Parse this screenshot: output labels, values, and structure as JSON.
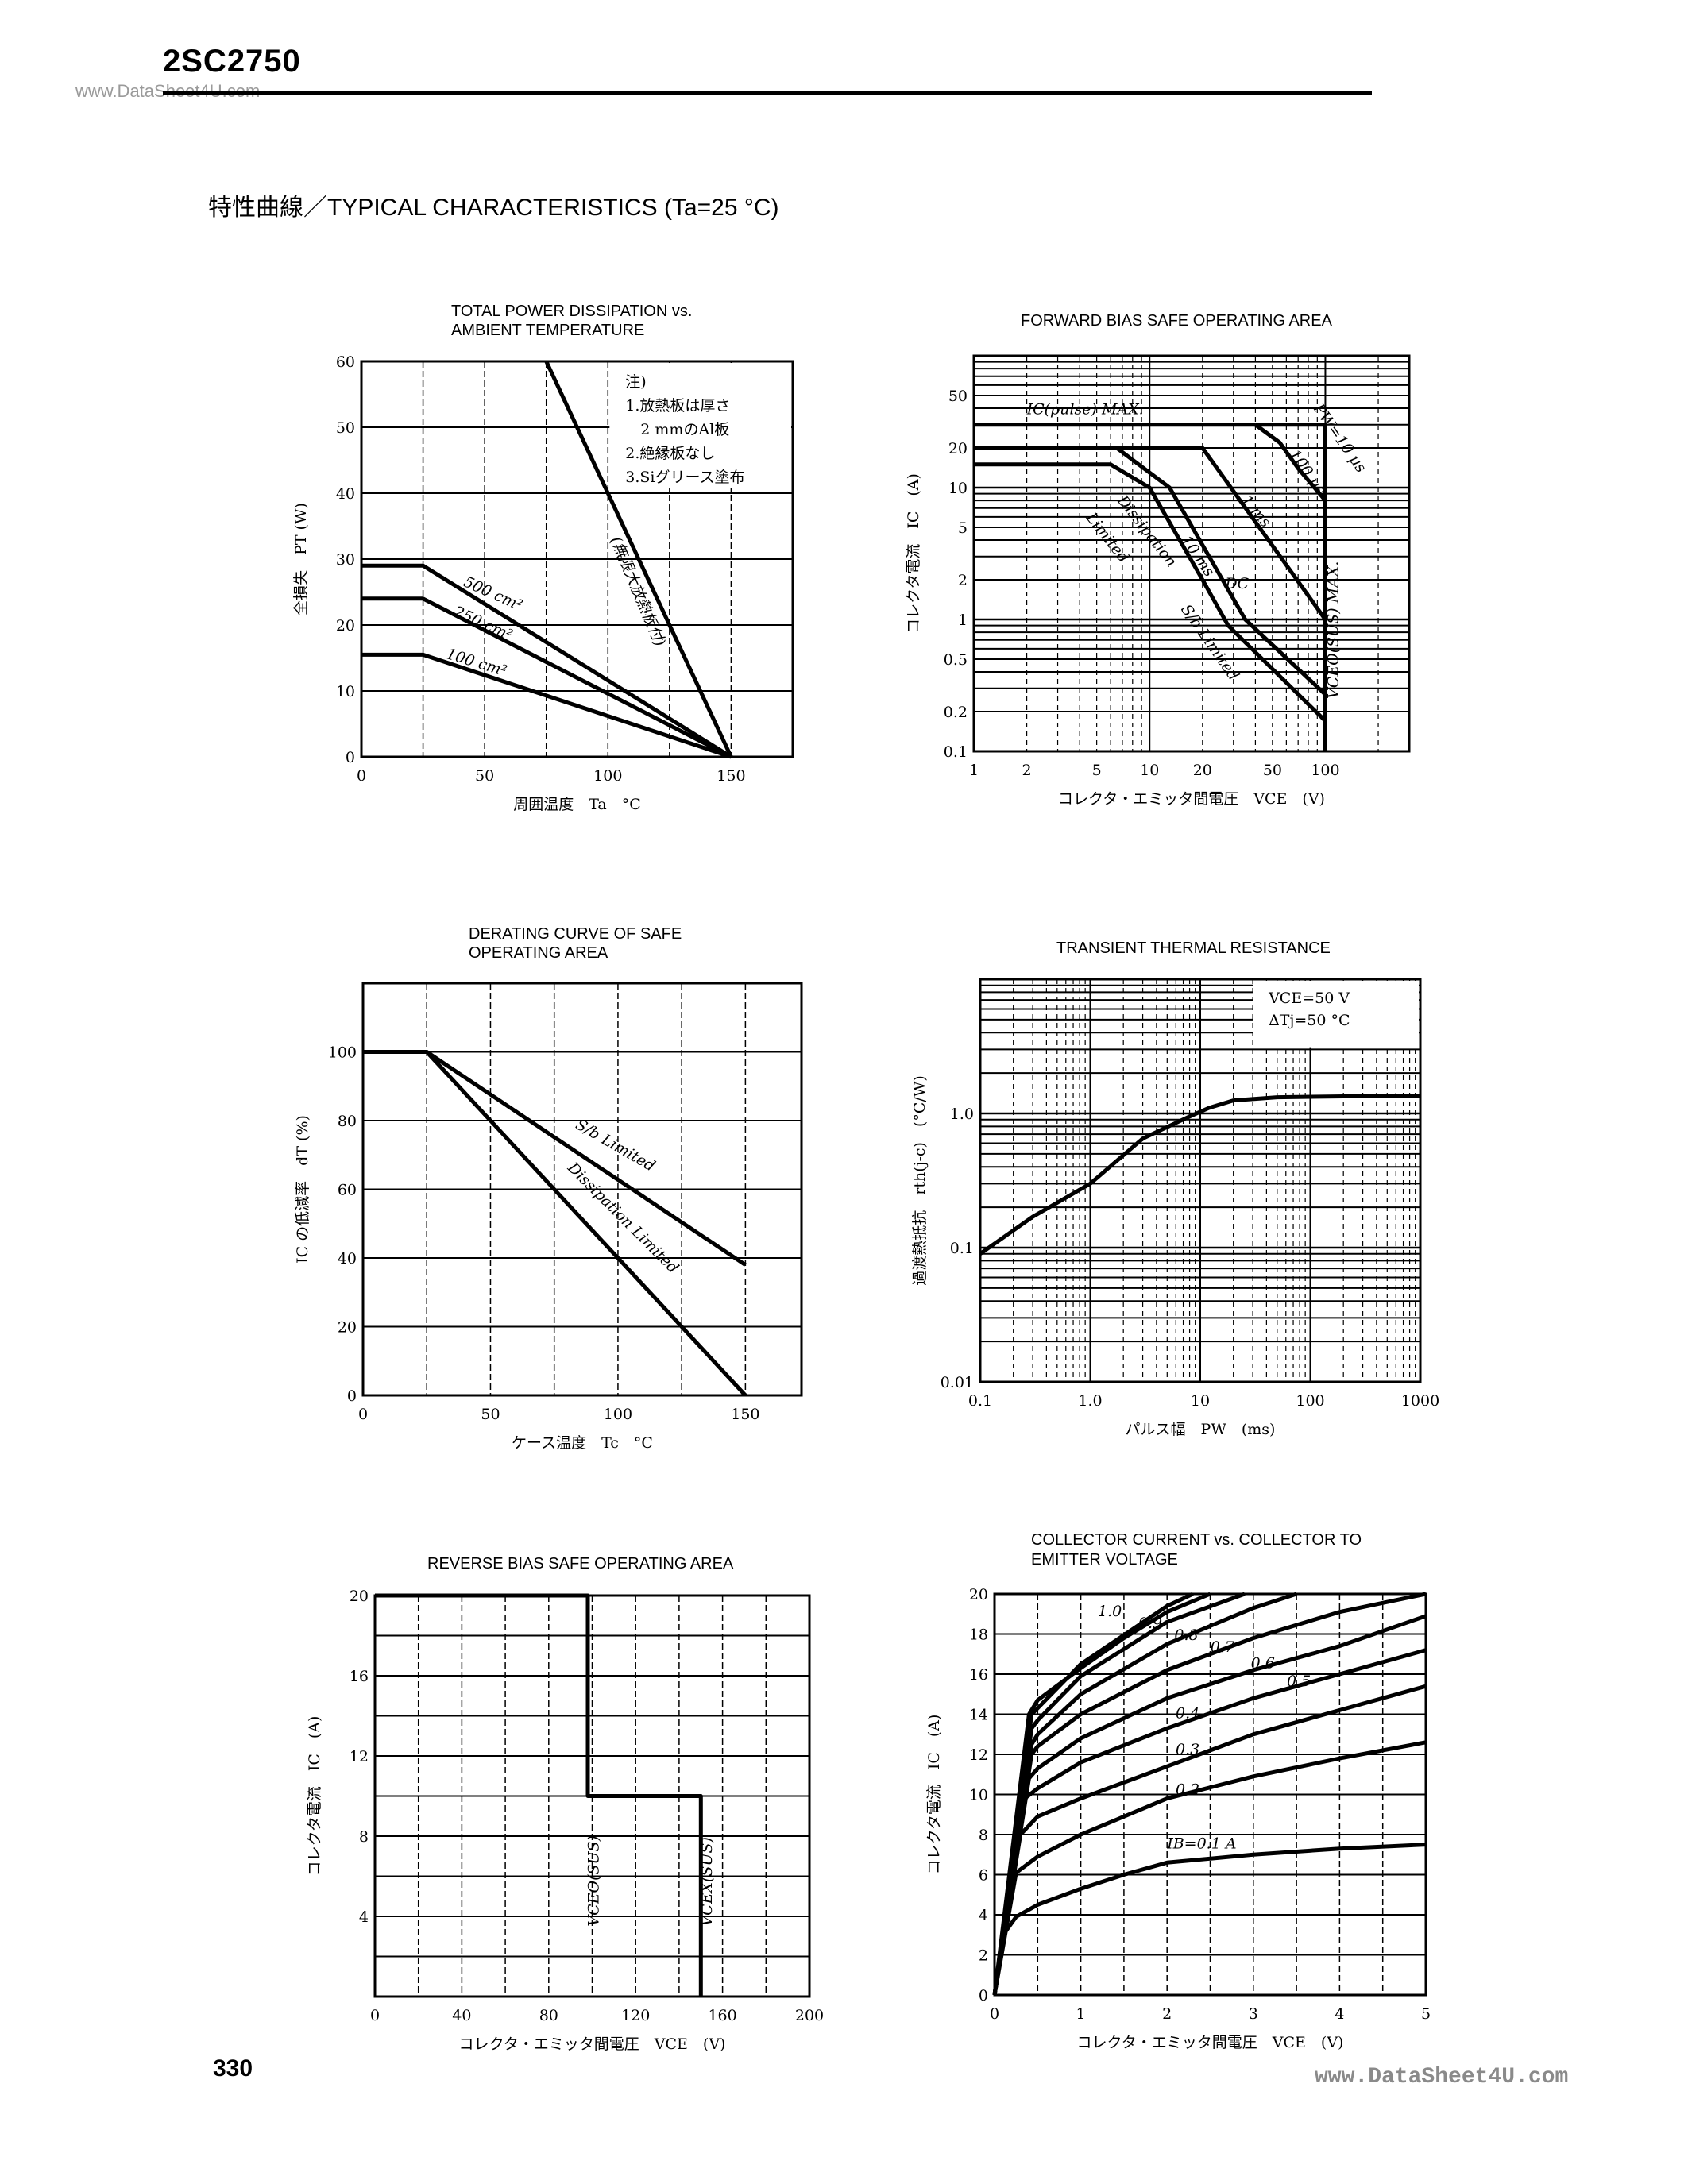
{
  "header": {
    "part_number": "2SC2750",
    "watermark": "www.DataSheet4U.com",
    "section_title": "特性曲線／TYPICAL CHARACTERISTICS (Ta=25 °C)"
  },
  "footer": {
    "page_number": "330",
    "watermark": "www.DataSheet4U.com"
  },
  "chart_data": [
    {
      "type": "line",
      "title_lines": [
        "TOTAL POWER DISSIPATION vs.",
        "AMBIENT TEMPERATURE"
      ],
      "xlabel": "周囲温度　Ta　°C",
      "ylabel": "全損失　PT (W)",
      "xscale": "linear",
      "yscale": "linear",
      "xlim": [
        0,
        175
      ],
      "ylim": [
        0,
        60
      ],
      "xgrid": 25,
      "ygrid": 10,
      "xticks": [
        0,
        50,
        100,
        150
      ],
      "yticks": [
        0,
        10,
        20,
        30,
        40,
        50,
        60
      ],
      "grid": true,
      "notes": [
        "注)",
        "1.放熱板は厚さ",
        "　2 mmのAl板",
        "2.絶縁板なし",
        "3.Siグリース塗布"
      ],
      "series": [
        {
          "name": "無限大放熱板付",
          "x": [
            75,
            150
          ],
          "y": [
            60,
            0
          ]
        },
        {
          "name": "500 cm²",
          "x": [
            0,
            25,
            150
          ],
          "y": [
            29,
            29,
            0
          ]
        },
        {
          "name": "250 cm²",
          "x": [
            0,
            25,
            150
          ],
          "y": [
            24,
            24,
            0
          ]
        },
        {
          "name": "100 cm²",
          "x": [
            0,
            25,
            150
          ],
          "y": [
            15.5,
            15.5,
            0
          ]
        }
      ],
      "annotations": [
        {
          "text": "500 cm²",
          "x": 41,
          "y": 26
        },
        {
          "text": "250 cm²",
          "x": 37,
          "y": 21.5
        },
        {
          "text": "100 cm²",
          "x": 34,
          "y": 15
        },
        {
          "text": "(無限大放熱板付)",
          "x": 101,
          "y": 33
        }
      ]
    },
    {
      "type": "line",
      "title_lines": [
        "FORWARD BIAS SAFE OPERATING AREA"
      ],
      "xlabel": "コレクタ・エミッタ間電圧　VCE　(V)",
      "ylabel": "コレクタ電流　IC　(A)",
      "xscale": "log",
      "yscale": "log",
      "xlim": [
        1,
        300
      ],
      "ylim": [
        0.1,
        100
      ],
      "xticks": [
        1,
        2,
        5,
        10,
        20,
        50,
        100
      ],
      "yticks": [
        0.1,
        0.2,
        0.5,
        1,
        2,
        5,
        10,
        20,
        50
      ],
      "grid": true,
      "series": [
        {
          "name": "IC(pulse) MAX.",
          "x": [
            1,
            40
          ],
          "y": [
            30,
            30
          ]
        },
        {
          "name": "PW=10 µs",
          "x": [
            40,
            100,
            100
          ],
          "y": [
            30,
            30,
            8
          ]
        },
        {
          "name": "100 µs",
          "x": [
            40,
            55,
            70,
            100
          ],
          "y": [
            30,
            22,
            14,
            8
          ]
        },
        {
          "name": "1 ms",
          "x": [
            1,
            20,
            100
          ],
          "y": [
            20,
            20,
            1
          ]
        },
        {
          "name": "10 ms",
          "x": [
            1,
            6.5,
            13,
            35,
            100
          ],
          "y": [
            20,
            20,
            10,
            1,
            0.27
          ]
        },
        {
          "name": "DC",
          "x": [
            1,
            6,
            10,
            20,
            28,
            100
          ],
          "y": [
            15,
            15,
            10,
            2,
            0.9,
            0.17
          ]
        },
        {
          "name": "VCEO(SUS) MAX.",
          "x": [
            100,
            100
          ],
          "y": [
            0.1,
            30
          ]
        }
      ],
      "annotations": [
        {
          "text": "IC(pulse)  MAX.",
          "x": 2,
          "y": 36
        },
        {
          "text": "PW=10 µs",
          "x": 85,
          "y": 40
        },
        {
          "text": "100 µs",
          "x": 62,
          "y": 18
        },
        {
          "text": "1 ms",
          "x": 33,
          "y": 8
        },
        {
          "text": "10 ms",
          "x": 15,
          "y": 4
        },
        {
          "text": "DC",
          "x": 13,
          "y": 3
        },
        {
          "text": "Dissipation",
          "x": 6.5,
          "y": 8
        },
        {
          "text": "Limited",
          "x": 5,
          "y": 7
        },
        {
          "text": "S/b Limited",
          "x": 15,
          "y": 1.2
        },
        {
          "text": "VCEO(SUS) MAX.",
          "x": 118,
          "y": 0.25
        }
      ]
    },
    {
      "type": "line",
      "title_lines": [
        "DERATING CURVE OF SAFE",
        "OPERATING AREA"
      ],
      "xlabel": "ケース温度　Tc　°C",
      "ylabel": "IC の低減率　dT (%)",
      "xscale": "linear",
      "yscale": "linear",
      "xlim": [
        0,
        172
      ],
      "ylim": [
        0,
        120
      ],
      "xgrid": 25,
      "ygrid": 20,
      "xticks": [
        0,
        50,
        100,
        150
      ],
      "yticks": [
        0,
        20,
        40,
        60,
        80,
        100
      ],
      "grid": true,
      "series": [
        {
          "name": "S/b Limited",
          "x": [
            0,
            25,
            150
          ],
          "y": [
            100,
            100,
            38
          ]
        },
        {
          "name": "Dissipation Limited",
          "x": [
            0,
            25,
            150
          ],
          "y": [
            100,
            100,
            0
          ]
        }
      ],
      "annotations": [
        {
          "text": "S/b Limited",
          "x": 83,
          "y": 78
        },
        {
          "text": "Dissipation Limited",
          "x": 80,
          "y": 66
        }
      ]
    },
    {
      "type": "line",
      "title_lines": [
        "TRANSIENT THERMAL RESISTANCE"
      ],
      "xlabel": "パルス幅　PW　(ms)",
      "ylabel": "過渡熱抵抗　rth(j-c)　(°C/W)",
      "xscale": "log",
      "yscale": "log",
      "xlim": [
        0.1,
        1000
      ],
      "ylim": [
        0.01,
        10
      ],
      "xticks": [
        0.1,
        1.0,
        10,
        100,
        1000
      ],
      "xtick_labels": [
        "0.1",
        "1.0",
        "10",
        "100",
        "1000"
      ],
      "yticks": [
        0.01,
        0.1,
        1.0
      ],
      "ytick_labels": [
        "0.01",
        "0.1",
        "1.0"
      ],
      "grid": true,
      "conditions": [
        "VCE=50 V",
        "ΔTj=50 °C"
      ],
      "series": [
        {
          "x": [
            0.1,
            0.3,
            1,
            3,
            8,
            12,
            20,
            50,
            200,
            1000
          ],
          "y": [
            0.09,
            0.17,
            0.3,
            0.65,
            0.95,
            1.1,
            1.25,
            1.32,
            1.34,
            1.35
          ]
        }
      ],
      "annotations": []
    },
    {
      "type": "line",
      "title_lines": [
        "REVERSE BIAS SAFE OPERATING AREA"
      ],
      "xlabel": "コレクタ・エミッタ間電圧　VCE　(V)",
      "ylabel": "コレクタ電流　IC　(A)",
      "xscale": "linear",
      "yscale": "linear",
      "xlim": [
        0,
        200
      ],
      "ylim": [
        0,
        20
      ],
      "xgrid": 20,
      "ygrid": 2,
      "xticks": [
        0,
        40,
        80,
        120,
        160,
        200
      ],
      "yticks": [
        4,
        8,
        12,
        16,
        20
      ],
      "grid": true,
      "series": [
        {
          "x": [
            0,
            98,
            98,
            150,
            150
          ],
          "y": [
            20,
            20,
            10,
            10,
            0
          ]
        }
      ],
      "annotations": [
        {
          "text": "VCEO(SUS)",
          "x": 103,
          "y": 3.5
        },
        {
          "text": "VCEX(SUS)",
          "x": 155,
          "y": 3.5
        }
      ]
    },
    {
      "type": "line",
      "title_lines": [
        "COLLECTOR CURRENT vs. COLLECTOR TO",
        "EMITTER VOLTAGE"
      ],
      "xlabel": "コレクタ・エミッタ間電圧　VCE　(V)",
      "ylabel": "コレクタ電流　IC　(A)",
      "xscale": "linear",
      "yscale": "linear",
      "xlim": [
        0,
        5
      ],
      "ylim": [
        0,
        20
      ],
      "xgrid": 0.5,
      "ygrid": 2,
      "xticks": [
        0,
        1,
        2,
        3,
        4,
        5
      ],
      "yticks": [
        0,
        2,
        4,
        6,
        8,
        10,
        12,
        14,
        16,
        18,
        20
      ],
      "grid": true,
      "series": [
        {
          "name": "IB=0.1 A",
          "x": [
            0,
            0.1,
            0.25,
            0.5,
            1,
            1.5,
            2,
            3,
            4,
            5
          ],
          "y": [
            0,
            3,
            3.9,
            4.5,
            5.3,
            6.0,
            6.6,
            7.0,
            7.3,
            7.5
          ]
        },
        {
          "name": "0.2",
          "x": [
            0,
            0.25,
            0.5,
            1,
            1.5,
            2,
            3,
            4,
            5
          ],
          "y": [
            0,
            6.1,
            6.9,
            8.0,
            8.9,
            9.8,
            10.9,
            11.8,
            12.6
          ]
        },
        {
          "name": "0.3",
          "x": [
            0,
            0.3,
            0.5,
            1,
            2,
            3,
            4,
            5
          ],
          "y": [
            0,
            8.0,
            8.9,
            9.8,
            11.4,
            13.0,
            14.2,
            15.4
          ]
        },
        {
          "name": "0.4",
          "x": [
            0,
            0.35,
            0.5,
            1,
            2,
            3,
            4,
            5
          ],
          "y": [
            0,
            9.8,
            10.3,
            11.6,
            13.3,
            14.8,
            16.0,
            17.2
          ]
        },
        {
          "name": "0.5",
          "x": [
            0,
            0.4,
            0.5,
            1,
            2,
            3,
            4,
            5
          ],
          "y": [
            0,
            10.8,
            11.3,
            12.8,
            14.8,
            16.2,
            17.4,
            18.9
          ]
        },
        {
          "name": "0.6",
          "x": [
            0,
            0.43,
            0.5,
            1,
            2,
            3,
            4,
            5
          ],
          "y": [
            0,
            12.0,
            12.4,
            14.0,
            16.2,
            17.8,
            19.1,
            20.0
          ]
        },
        {
          "name": "0.7",
          "x": [
            0,
            0.43,
            0.5,
            1,
            2,
            3,
            3.5
          ],
          "y": [
            0,
            12.5,
            13.0,
            15.0,
            17.5,
            19.3,
            20.0
          ]
        },
        {
          "name": "0.8",
          "x": [
            0,
            0.43,
            0.5,
            1,
            2,
            2.9
          ],
          "y": [
            0,
            13.3,
            13.7,
            15.9,
            18.6,
            20.0
          ]
        },
        {
          "name": "0.9",
          "x": [
            0,
            0.43,
            0.5,
            1,
            2,
            2.3
          ],
          "y": [
            0,
            14.0,
            14.3,
            16.5,
            19.4,
            20.0
          ]
        },
        {
          "name": "1.0",
          "x": [
            0,
            0.4,
            0.5,
            1,
            1.5,
            2,
            2.5
          ],
          "y": [
            0,
            14.0,
            14.7,
            16.3,
            17.8,
            19.1,
            20.0
          ]
        }
      ],
      "annotations": [
        {
          "text": "1.0",
          "x": 1.75,
          "y": 18.9
        },
        {
          "text": "0.9",
          "x": 1.85,
          "y": 18.3
        },
        {
          "text": "0.8",
          "x": 1.9,
          "y": 17.7
        },
        {
          "text": "0.7",
          "x": 1.95,
          "y": 17.1
        },
        {
          "text": "0.6",
          "x": 2.05,
          "y": 16.3
        },
        {
          "text": "0.5",
          "x": 2.1,
          "y": 15.4
        },
        {
          "text": "0.4",
          "x": 2.1,
          "y": 13.8
        },
        {
          "text": "0.3",
          "x": 2.1,
          "y": 12.0
        },
        {
          "text": "0.2",
          "x": 2.1,
          "y": 10.0
        },
        {
          "text": "IB=0.1 A",
          "x": 2.0,
          "y": 7.3
        }
      ]
    }
  ]
}
